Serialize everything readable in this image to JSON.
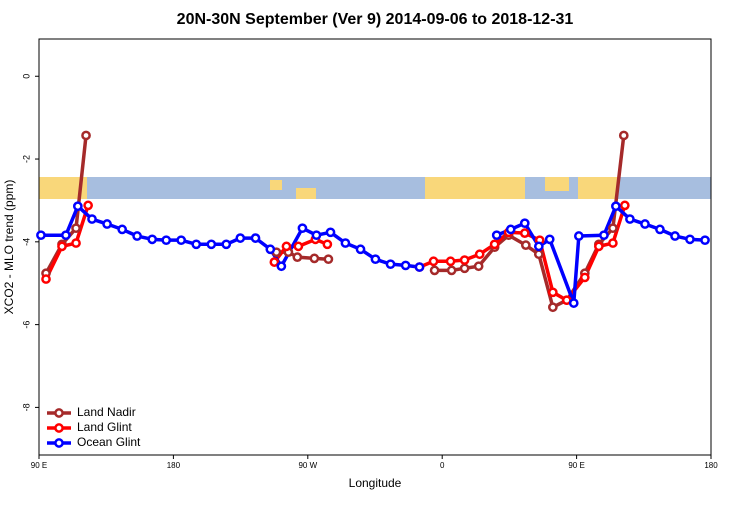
{
  "chart_data": {
    "type": "line",
    "title": "20N-30N September (Ver 9)   2014-09-06 to 2018-12-31",
    "x_label": "Longitude",
    "y_label": "XCO2 - MLO trend (ppm)",
    "xlim": [
      90,
      540
    ],
    "ylim": [
      -9.15,
      0.9
    ],
    "xticks": [
      {
        "value": 90,
        "label": "90 E"
      },
      {
        "value": 180,
        "label": "180"
      },
      {
        "value": 270,
        "label": "90 W"
      },
      {
        "value": 360,
        "label": "0"
      },
      {
        "value": 450,
        "label": "90 E"
      },
      {
        "value": 540,
        "label": "180"
      }
    ],
    "yticks": [
      0,
      -2,
      -4,
      -6,
      -8
    ],
    "legend": "bottom-left",
    "series": [
      {
        "name": "Land Nadir",
        "color": "#a52a2a",
        "x": [
          94.7,
          105.4,
          114.8,
          121.5,
          null,
          249,
          257,
          263,
          274.4,
          283.8,
          null,
          354.9,
          366.3,
          375,
          384.4,
          395.1,
          404.5,
          416,
          424.7,
          434.1,
          443.4,
          455.5,
          464.9,
          474.3,
          481.6
        ],
        "values": [
          -4.76,
          -4.06,
          -3.67,
          -1.43,
          null,
          -4.25,
          -4.25,
          -4.37,
          -4.4,
          -4.42,
          null,
          -4.69,
          -4.69,
          -4.64,
          -4.59,
          -4.13,
          -3.84,
          -4.08,
          -4.3,
          -5.58,
          -5.41,
          -4.76,
          -4.06,
          -3.67,
          -1.43
        ]
      },
      {
        "name": "Land Glint",
        "color": "#ff0000",
        "x": [
          94.7,
          105.4,
          114.8,
          122.9,
          null,
          247.6,
          255.7,
          263.7,
          275.1,
          283.1,
          null,
          344.8,
          354.2,
          365.6,
          375,
          385.1,
          395.1,
          404.5,
          415.3,
          425.3,
          434.1,
          443.4,
          455.5,
          464.9,
          474.3,
          482.3
        ],
        "values": [
          -4.9,
          -4.11,
          -4.03,
          -3.12,
          null,
          -4.49,
          -4.11,
          -4.11,
          -3.94,
          -4.06,
          null,
          -4.61,
          -4.47,
          -4.47,
          -4.44,
          -4.3,
          -4.06,
          -3.77,
          -3.79,
          -3.96,
          -5.22,
          -5.41,
          -4.86,
          -4.11,
          -4.03,
          -3.12
        ]
      },
      {
        "name": "Ocean Glint",
        "color": "#0000ff",
        "x": [
          91.3,
          108,
          116,
          125.5,
          135.6,
          145.7,
          155.7,
          165.8,
          175.2,
          185.2,
          195.3,
          205.4,
          215.4,
          224.8,
          235,
          244.9,
          252.3,
          266.4,
          275.8,
          285.2,
          295.2,
          305.3,
          315.3,
          325.4,
          335.5,
          344.8,
          null,
          396.5,
          405.9,
          415.3,
          424.7,
          432,
          448.1,
          451.5,
          468.3,
          476.3,
          485.7,
          495.8,
          505.8,
          515.9,
          525.9,
          536
        ],
        "values": [
          -3.84,
          -3.84,
          -3.14,
          -3.45,
          -3.57,
          -3.7,
          -3.86,
          -3.94,
          -3.96,
          -3.96,
          -4.06,
          -4.06,
          -4.06,
          -3.91,
          -3.91,
          -4.18,
          -4.59,
          -3.67,
          -3.84,
          -3.77,
          -4.03,
          -4.18,
          -4.42,
          -4.54,
          -4.57,
          -4.61,
          null,
          -3.84,
          -3.7,
          -3.55,
          -4.11,
          -3.94,
          -5.48,
          -3.86,
          -3.84,
          -3.14,
          -3.45,
          -3.57,
          -3.7,
          -3.86,
          -3.94,
          -3.96
        ]
      }
    ]
  }
}
